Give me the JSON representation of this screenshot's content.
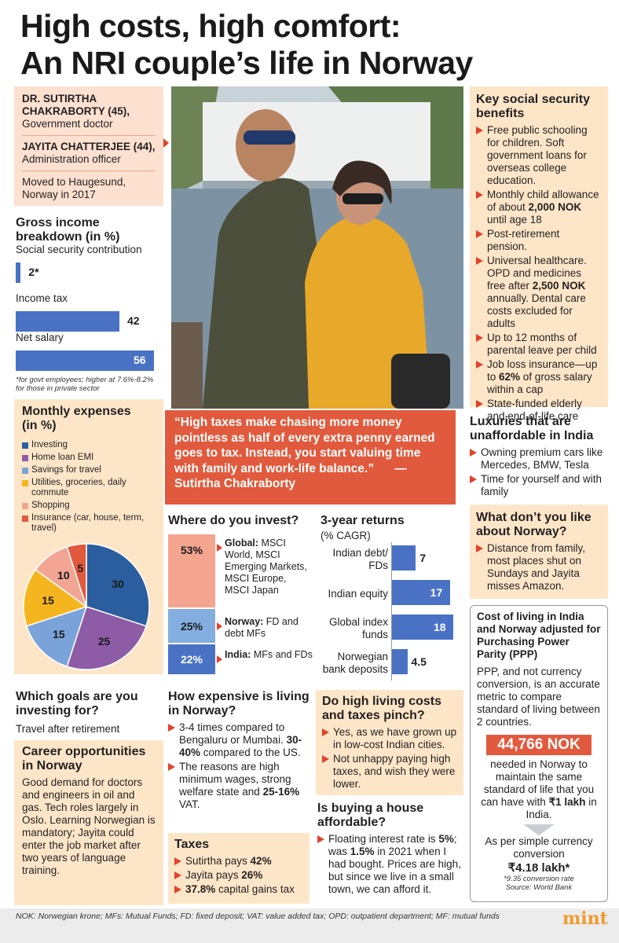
{
  "title_line1": "High costs, high comfort:",
  "title_line2": "An NRI couple’s life in Norway",
  "profile": {
    "name1": "DR. SUTIRTHA CHAKRABORTY (45),",
    "role1": "Government doctor",
    "name2": "JAYITA CHATTERJEE (44),",
    "role2": "Administration officer",
    "moved": "Moved to Haugesund, Norway in 2017"
  },
  "income": {
    "heading": "Gross income breakdown (in %)",
    "footnote": "*for govt employees; higher at 7.6%-8.2% for those in private sector"
  },
  "expenses": {
    "heading": "Monthly expenses (in %)"
  },
  "quote": {
    "text": "“High taxes make chasing more money pointless as half of every extra penny earned goes to tax. Instead, you start valuing time with family and work-life balance.”",
    "author": "—Sutirtha Chakraborty"
  },
  "benefits": {
    "heading": "Key social security benefits",
    "items": [
      [
        "Free public schooling for children. Soft government loans for overseas college education.",
        ""
      ],
      [
        "Monthly child allowance of about ",
        "2,000 NOK",
        " until age 18"
      ],
      [
        "Post-retirement pension.",
        ""
      ],
      [
        "Universal healthcare. OPD and medicines free after ",
        "2,500 NOK",
        " annually. Dental care costs excluded for adults"
      ],
      [
        "Up to 12 months of parental leave per child",
        ""
      ],
      [
        "Job loss insurance—up to ",
        "62%",
        " of gross salary within a cap"
      ],
      [
        "State-funded elderly and end-of-life care",
        ""
      ]
    ]
  },
  "luxuries": {
    "heading": "Luxuries that are unaffordable in India",
    "items": [
      "Owning premium cars like Mercedes, BMW, Tesla",
      "Time for yourself and with family"
    ]
  },
  "dislike": {
    "heading": "What don’t you like about Norway?",
    "items": [
      "Distance from family, most places shut on Sundays and Jayita misses Amazon."
    ]
  },
  "invest": {
    "heading": "Where do you invest?",
    "rows": [
      {
        "pct": "53%",
        "label_bold": "Global:",
        "label": " MSCI World, MSCI Emerging Markets, MSCI Europe, MSCI Japan"
      },
      {
        "pct": "25%",
        "label_bold": "Norway:",
        "label": " FD and debt MFs"
      },
      {
        "pct": "22%",
        "label_bold": "India:",
        "label": " MFs and FDs"
      }
    ]
  },
  "returns": {
    "heading": "3-year returns",
    "sub": "(% CAGR)"
  },
  "goals": {
    "heading": "Which goals are you investing for?",
    "text": "Travel after retirement"
  },
  "career": {
    "heading": "Career opportunities in Norway",
    "text": "Good demand for doctors and engineers in oil and gas. Tech roles largely in Oslo. Learning Norwegian is mandatory; Jayita could enter the job market after two years of language training."
  },
  "expensive": {
    "heading": "How expensive is living in Norway?",
    "items": [
      [
        "3-4 times compared to Bengaluru or Mumbai. ",
        "30-40%",
        " compared to the US."
      ],
      [
        "The reasons are high minimum wages, strong welfare state and ",
        "25-16%",
        " VAT."
      ]
    ]
  },
  "taxes": {
    "heading": "Taxes",
    "items": [
      [
        "Sutirtha pays ",
        "42%",
        ""
      ],
      [
        "Jayita pays ",
        "26%",
        ""
      ],
      [
        "",
        "37.8%",
        " capital gains tax"
      ]
    ]
  },
  "pinch": {
    "heading": "Do high living costs and taxes pinch?",
    "items": [
      "Yes, as we have grown up in low-cost Indian cities.",
      "Not unhappy paying high taxes, and wish they were lower."
    ]
  },
  "house": {
    "heading": "Is buying a house affordable?",
    "parts": [
      "Floating interest rate is ",
      "5%",
      "; was ",
      "1.5%",
      " in 2021 when I had bought. Prices are high, but since we live in a small town, we can afford it."
    ]
  },
  "ppp": {
    "heading": "Cost of living in India and Norway adjusted for Purchasing Power Parity (PPP)",
    "text": "PPP, and not currency conversion, is an accurate metric to compare standard of living between 2 countries.",
    "big": "44,766 NOK",
    "needed": "needed in Norway to maintain the same standard of life that you can have with ",
    "lakh": "₹1 lakh",
    "lakh_tail": " in India.",
    "simple": "As per simple currency conversion",
    "simple_val": "₹4.18 lakh*",
    "note1": "*9.35 conversion rate",
    "note2": "Source: World Bank"
  },
  "footer": "NOK: Norwegian krone; MFs: Mutual Funds; FD: fixed deposit; VAT: value added tax; OPD: outpatient department; MF: mutual funds",
  "brand": "mint",
  "colors": {
    "blue": "#4a72c4",
    "red": "#e15a3d",
    "peach": "#fce0d0",
    "orange_bg": "#fde6c8"
  },
  "chart_data": [
    {
      "type": "bar",
      "title": "Gross income breakdown (in %)",
      "categories": [
        "Social security contribution",
        "Income tax",
        "Net salary"
      ],
      "values": [
        2,
        42,
        56
      ],
      "value_labels": [
        "2*",
        "42",
        "56"
      ]
    },
    {
      "type": "pie",
      "title": "Monthly expenses (in %)",
      "categories": [
        "Investing",
        "Home loan EMI",
        "Savings for travel",
        "Utilities, groceries, daily commute",
        "Shopping",
        "Insurance (car, house, term, travel)"
      ],
      "values": [
        30,
        25,
        15,
        15,
        10,
        5
      ],
      "colors": [
        "#2b5e9e",
        "#8e5ba6",
        "#7aa3d9",
        "#f5b51e",
        "#f2a593",
        "#e15a3d"
      ]
    },
    {
      "type": "bar",
      "title": "3-year returns",
      "ylabel": "(% CAGR)",
      "categories": [
        "Indian debt/ FDs",
        "Indian equity",
        "Global index funds",
        "Norwegian bank deposits"
      ],
      "values": [
        7,
        17,
        18,
        4.5
      ]
    },
    {
      "type": "bar",
      "title": "Where do you invest?",
      "categories": [
        "Global",
        "Norway",
        "India"
      ],
      "values": [
        53,
        25,
        22
      ]
    }
  ]
}
